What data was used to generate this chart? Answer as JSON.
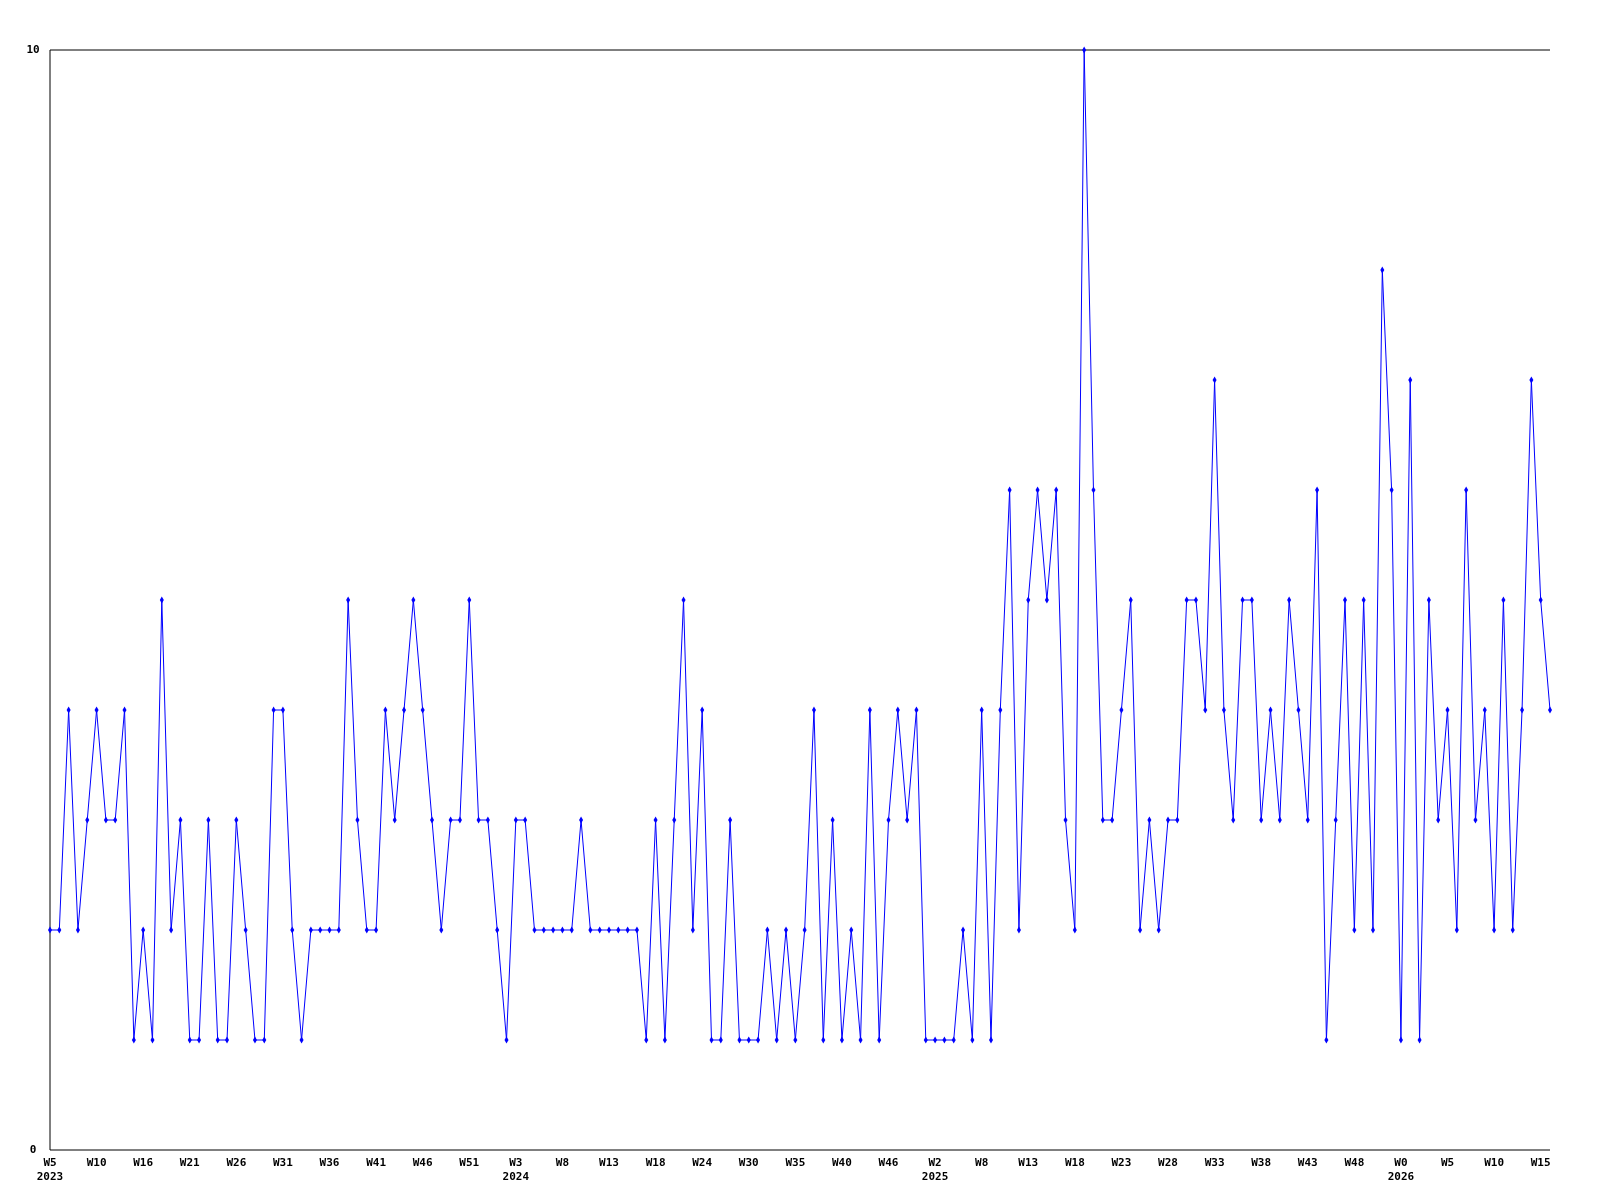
{
  "chart_data": {
    "type": "line",
    "categories": [
      "W5\n2023",
      null,
      null,
      null,
      null,
      "W10",
      null,
      null,
      null,
      null,
      "W16",
      null,
      null,
      null,
      null,
      "W21",
      null,
      null,
      null,
      null,
      "W26",
      null,
      null,
      null,
      null,
      "W31",
      null,
      null,
      null,
      null,
      "W36",
      null,
      null,
      null,
      null,
      "W41",
      null,
      null,
      null,
      null,
      "W46",
      null,
      null,
      null,
      null,
      "W51",
      null,
      null,
      null,
      null,
      "W3\n2024",
      null,
      null,
      null,
      null,
      "W8",
      null,
      null,
      null,
      null,
      "W13",
      null,
      null,
      null,
      null,
      "W18",
      null,
      null,
      null,
      null,
      "W24",
      null,
      null,
      null,
      null,
      "W30",
      null,
      null,
      null,
      null,
      "W35",
      null,
      null,
      null,
      null,
      "W40",
      null,
      null,
      null,
      null,
      "W46",
      null,
      null,
      null,
      null,
      "W2\n2025",
      null,
      null,
      null,
      null,
      "W8",
      null,
      null,
      null,
      null,
      "W13",
      null,
      null,
      null,
      null,
      "W18",
      null,
      null,
      null,
      null,
      "W23",
      null,
      null,
      null,
      null,
      "W28",
      null,
      null,
      null,
      null,
      "W33",
      null,
      null,
      null,
      null,
      "W38",
      null,
      null,
      null,
      null,
      "W43",
      null,
      null,
      null,
      null,
      "W48",
      null,
      null,
      null,
      null,
      "W0\n2026",
      null,
      null,
      null,
      null,
      "W5",
      null,
      null,
      null,
      null,
      "W10",
      null,
      null,
      null,
      null,
      "W15",
      null
    ],
    "series": [
      {
        "color": "#0000ff",
        "values": [
          2,
          2,
          4,
          2,
          3,
          4,
          3,
          3,
          4,
          1,
          2,
          1,
          5,
          2,
          3,
          1,
          1,
          3,
          1,
          1,
          3,
          2,
          1,
          1,
          4,
          4,
          2,
          1,
          2,
          2,
          2,
          2,
          5,
          3,
          2,
          2,
          4,
          3,
          4,
          5,
          4,
          3,
          2,
          3,
          3,
          5,
          3,
          3,
          2,
          1,
          3,
          3,
          2,
          2,
          2,
          2,
          2,
          3,
          2,
          2,
          2,
          2,
          2,
          2,
          1,
          3,
          1,
          3,
          5,
          2,
          4,
          1,
          1,
          3,
          1,
          1,
          1,
          2,
          1,
          2,
          1,
          2,
          4,
          1,
          3,
          1,
          2,
          1,
          4,
          1,
          3,
          4,
          3,
          4,
          1,
          1,
          1,
          1,
          2,
          1,
          4,
          1,
          4,
          6,
          2,
          5,
          6,
          5,
          6,
          3,
          2,
          10,
          6,
          3,
          3,
          4,
          5,
          2,
          3,
          2,
          3,
          3,
          5,
          5,
          4,
          7,
          4,
          3,
          5,
          5,
          3,
          4,
          3,
          5,
          4,
          3,
          6,
          1,
          3,
          5,
          2,
          5,
          2,
          8,
          6,
          1,
          7,
          1,
          5,
          3,
          4,
          2,
          6,
          3,
          4,
          2,
          5,
          2,
          4,
          7,
          5,
          4
        ]
      }
    ],
    "ylim": [
      0,
      10
    ],
    "yticks": [
      0,
      10
    ],
    "marker": "diamond",
    "line_style": "solid"
  }
}
